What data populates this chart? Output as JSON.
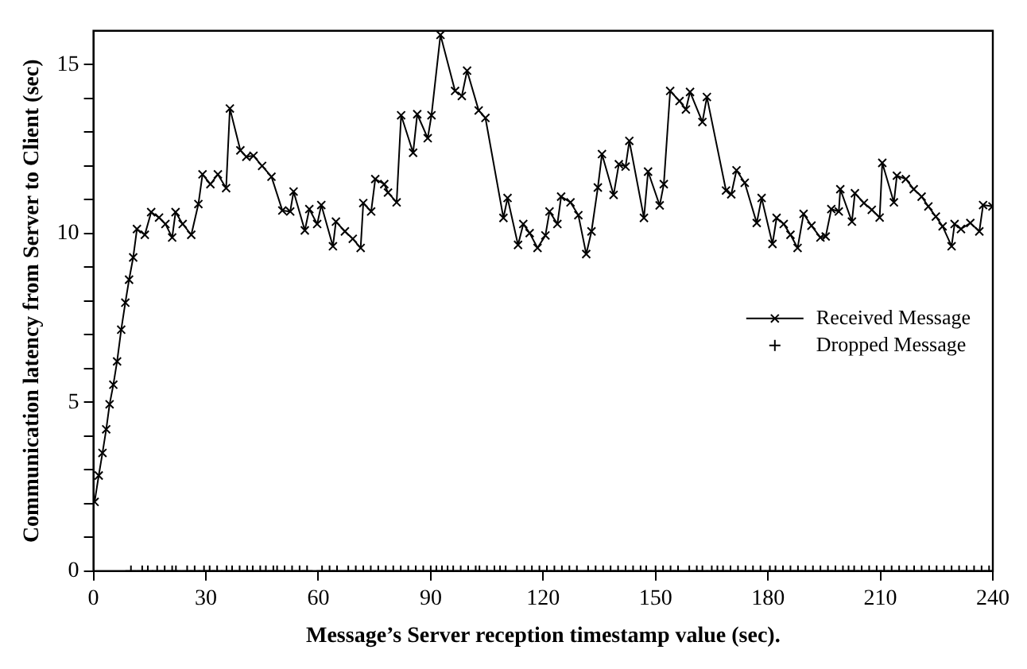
{
  "chart_data": {
    "type": "line",
    "xlabel": "Message’s Server reception timestamp value (sec).",
    "ylabel": "Communication latency from Server to Client (sec)",
    "xlim": [
      0,
      240
    ],
    "xticks": [
      0,
      30,
      60,
      90,
      120,
      150,
      180,
      210,
      240
    ],
    "ylim": [
      0,
      16
    ],
    "yticks": [
      0,
      {
        "value": 1,
        "label": null
      },
      {
        "value": 2,
        "label": null
      },
      {
        "value": 3,
        "label": null
      },
      {
        "value": 4,
        "label": null
      },
      5,
      {
        "value": 6,
        "label": null
      },
      {
        "value": 7,
        "label": null
      },
      {
        "value": 8,
        "label": null
      },
      {
        "value": 9,
        "label": null
      },
      10,
      {
        "value": 11,
        "label": null
      },
      {
        "value": 12,
        "label": null
      },
      {
        "value": 13,
        "label": null
      },
      {
        "value": 14,
        "label": null
      },
      15
    ],
    "grid": false,
    "legend": "right",
    "series": [
      {
        "name": "Received Message",
        "type": "line",
        "marker": "cross",
        "color": "#000000",
        "x": [
          0.3,
          1.4,
          2.4,
          3.4,
          4.3,
          5.3,
          6.3,
          7.4,
          8.5,
          9.5,
          10.6,
          11.6,
          13.7,
          15.4,
          17.5,
          19.2,
          21,
          21.9,
          23.8,
          26.1,
          28,
          29.1,
          31.2,
          33.2,
          35.4,
          36.4,
          39.2,
          40.8,
          42.7,
          45,
          47.5,
          50.4,
          52.5,
          53.4,
          56.4,
          57.6,
          59.7,
          60.8,
          63.9,
          64.7,
          67.1,
          69.2,
          71.3,
          72,
          74.1,
          75.2,
          77.6,
          78.6,
          80.9,
          82.1,
          85.3,
          86.4,
          89.2,
          90.2,
          92.6,
          96.5,
          98.3,
          99.7,
          102.8,
          104.6,
          109.4,
          110.5,
          113.3,
          114.7,
          116.4,
          118.5,
          120.6,
          121.7,
          123.8,
          124.8,
          127.3,
          129.4,
          131.5,
          132.9,
          134.6,
          135.7,
          138.8,
          140.2,
          142,
          143,
          146.9,
          148,
          151.1,
          152.2,
          153.9,
          156.4,
          158.1,
          159.2,
          162.5,
          163.7,
          168.8,
          170.2,
          171.6,
          173.8,
          177,
          178.3,
          181.2,
          182.3,
          184.2,
          186,
          187.9,
          189.5,
          191.6,
          194,
          195.4,
          196.9,
          198.9,
          199.3,
          202.4,
          203.2,
          205.6,
          207.7,
          209.8,
          210.5,
          213.6,
          214.4,
          216.8,
          218.9,
          221,
          222.8,
          224.8,
          226.6,
          229,
          229.8,
          231.5,
          234,
          236.4,
          237.4,
          239.9
        ],
        "values": [
          2.05,
          2.83,
          3.5,
          4.2,
          4.94,
          5.52,
          6.21,
          7.15,
          7.95,
          8.63,
          9.29,
          10.13,
          9.96,
          10.63,
          10.47,
          10.28,
          9.88,
          10.63,
          10.28,
          9.96,
          10.87,
          11.75,
          11.46,
          11.75,
          11.34,
          13.7,
          12.46,
          12.27,
          12.3,
          12.0,
          11.68,
          10.68,
          10.65,
          11.24,
          10.09,
          10.72,
          10.28,
          10.84,
          9.62,
          10.35,
          10.06,
          9.84,
          9.57,
          10.9,
          10.65,
          11.61,
          11.46,
          11.21,
          10.92,
          13.5,
          12.39,
          13.53,
          12.82,
          13.5,
          15.88,
          14.22,
          14.07,
          14.82,
          13.64,
          13.42,
          10.46,
          11.05,
          9.66,
          10.28,
          10.01,
          9.57,
          9.94,
          10.65,
          10.28,
          11.09,
          10.92,
          10.54,
          9.39,
          10.06,
          11.36,
          12.35,
          11.14,
          12.05,
          11.98,
          12.74,
          10.46,
          11.83,
          10.83,
          11.46,
          14.22,
          13.92,
          13.67,
          14.19,
          13.3,
          14.04,
          11.27,
          11.16,
          11.87,
          11.5,
          10.31,
          11.05,
          9.69,
          10.46,
          10.28,
          9.96,
          9.57,
          10.58,
          10.23,
          9.88,
          9.91,
          10.72,
          10.65,
          11.31,
          10.35,
          11.19,
          10.9,
          10.7,
          10.47,
          12.09,
          10.92,
          11.71,
          11.61,
          11.31,
          11.09,
          10.8,
          10.5,
          10.21,
          9.62,
          10.28,
          10.13,
          10.31,
          10.06,
          10.84,
          10.8
        ]
      },
      {
        "name": "Dropped Message",
        "type": "scatter",
        "marker": "plus",
        "color": "#000000",
        "x": [
          10,
          13,
          14.5,
          17,
          19,
          21,
          22,
          25,
          27,
          29.5,
          31,
          33,
          35.5,
          37,
          39,
          41,
          42.5,
          44.5,
          46,
          48,
          49,
          51,
          53,
          55,
          57,
          61,
          63,
          65,
          68,
          70,
          72,
          74,
          76,
          78,
          80,
          82,
          84,
          86,
          88,
          90,
          91.5,
          93,
          94.5,
          96,
          98,
          100,
          102,
          103,
          105,
          107,
          108.5,
          110,
          113,
          115,
          117,
          119,
          121,
          123,
          125,
          127,
          129,
          132,
          134,
          136,
          138,
          140,
          142,
          144,
          146,
          147.5,
          150,
          152,
          154,
          156,
          159,
          161,
          162.5,
          165,
          166.5,
          168,
          170,
          172,
          174,
          176,
          178,
          180.5,
          182,
          184,
          186,
          188,
          190,
          192,
          194,
          196,
          198,
          200,
          201.5,
          203,
          205,
          207,
          209,
          211,
          213,
          215,
          217,
          219,
          221,
          223,
          225,
          227,
          229,
          231,
          233,
          235,
          237,
          239
        ],
        "values": [
          0,
          0,
          0,
          0,
          0,
          0,
          0,
          0,
          0,
          0,
          0,
          0,
          0,
          0,
          0,
          0,
          0,
          0,
          0,
          0,
          0,
          0,
          0,
          0,
          0,
          0,
          0,
          0,
          0,
          0,
          0,
          0,
          0,
          0,
          0,
          0,
          0,
          0,
          0,
          0,
          0,
          0,
          0,
          0,
          0,
          0,
          0,
          0,
          0,
          0,
          0,
          0,
          0,
          0,
          0,
          0,
          0,
          0,
          0,
          0,
          0,
          0,
          0,
          0,
          0,
          0,
          0,
          0,
          0,
          0,
          0,
          0,
          0,
          0,
          0,
          0,
          0,
          0,
          0,
          0,
          0,
          0,
          0,
          0,
          0,
          0,
          0,
          0,
          0,
          0,
          0,
          0,
          0,
          0,
          0,
          0,
          0,
          0,
          0,
          0,
          0,
          0,
          0,
          0,
          0,
          0,
          0,
          0,
          0,
          0,
          0,
          0,
          0,
          0,
          0,
          0
        ]
      }
    ]
  }
}
